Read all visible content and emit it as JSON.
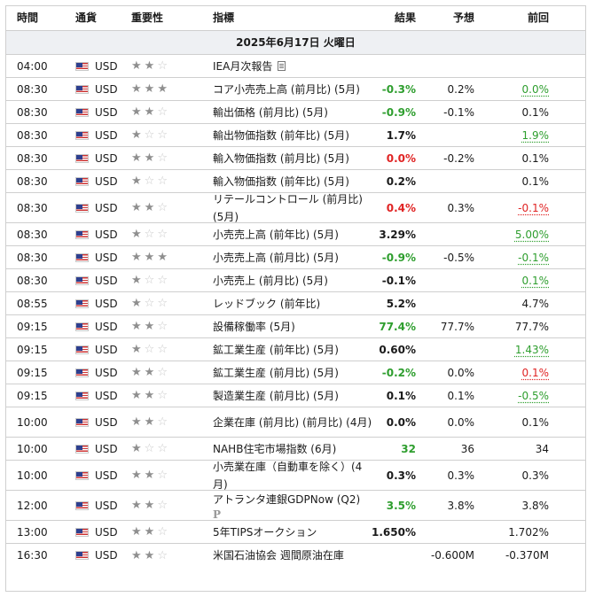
{
  "headers": {
    "time": "時間",
    "currency": "通貨",
    "importance": "重要性",
    "indicator": "指標",
    "result": "結果",
    "forecast": "予想",
    "previous": "前回"
  },
  "date_label": "2025年6月17日 火曜日",
  "rows": [
    {
      "time": "04:00",
      "currency": "USD",
      "stars": 2,
      "indicator": "IEA月次報告",
      "result": "",
      "result_color": "",
      "forecast": "",
      "previous": "",
      "prev_color": "",
      "icon": "document-icon"
    },
    {
      "time": "08:30",
      "currency": "USD",
      "stars": 3,
      "indicator": "コア小売売上高 (前月比) (5月)",
      "result": "-0.3%",
      "result_color": "green",
      "forecast": "0.2%",
      "previous": "0.0%",
      "prev_color": "green"
    },
    {
      "time": "08:30",
      "currency": "USD",
      "stars": 2,
      "indicator": "輸出価格 (前月比) (5月)",
      "result": "-0.9%",
      "result_color": "green",
      "forecast": "-0.1%",
      "previous": "0.1%",
      "prev_color": ""
    },
    {
      "time": "08:30",
      "currency": "USD",
      "stars": 1,
      "indicator": "輸出物価指数 (前年比) (5月)",
      "result": "1.7%",
      "result_color": "",
      "forecast": "",
      "previous": "1.9%",
      "prev_color": "green"
    },
    {
      "time": "08:30",
      "currency": "USD",
      "stars": 2,
      "indicator": "輸入物価指数 (前月比) (5月)",
      "result": "0.0%",
      "result_color": "red",
      "forecast": "-0.2%",
      "previous": "0.1%",
      "prev_color": ""
    },
    {
      "time": "08:30",
      "currency": "USD",
      "stars": 1,
      "indicator": "輸入物価指数 (前年比) (5月)",
      "result": "0.2%",
      "result_color": "",
      "forecast": "",
      "previous": "0.1%",
      "prev_color": ""
    },
    {
      "time": "08:30",
      "currency": "USD",
      "stars": 2,
      "indicator": "リテールコントロール (前月比) (5月)",
      "result": "0.4%",
      "result_color": "red",
      "forecast": "0.3%",
      "previous": "-0.1%",
      "prev_color": "red"
    },
    {
      "time": "08:30",
      "currency": "USD",
      "stars": 1,
      "indicator": "小売売上高 (前年比) (5月)",
      "result": "3.29%",
      "result_color": "",
      "forecast": "",
      "previous": "5.00%",
      "prev_color": "green"
    },
    {
      "time": "08:30",
      "currency": "USD",
      "stars": 3,
      "indicator": "小売売上高 (前月比) (5月)",
      "result": "-0.9%",
      "result_color": "green",
      "forecast": "-0.5%",
      "previous": "-0.1%",
      "prev_color": "green"
    },
    {
      "time": "08:30",
      "currency": "USD",
      "stars": 1,
      "indicator": "小売売上 (前月比) (5月)",
      "result": "-0.1%",
      "result_color": "",
      "forecast": "",
      "previous": "0.1%",
      "prev_color": "green"
    },
    {
      "time": "08:55",
      "currency": "USD",
      "stars": 1,
      "indicator": "レッドブック (前年比)",
      "result": "5.2%",
      "result_color": "",
      "forecast": "",
      "previous": "4.7%",
      "prev_color": ""
    },
    {
      "time": "09:15",
      "currency": "USD",
      "stars": 2,
      "indicator": "設備稼働率 (5月)",
      "result": "77.4%",
      "result_color": "green",
      "forecast": "77.7%",
      "previous": "77.7%",
      "prev_color": ""
    },
    {
      "time": "09:15",
      "currency": "USD",
      "stars": 1,
      "indicator": "鉱工業生産 (前年比) (5月)",
      "result": "0.60%",
      "result_color": "",
      "forecast": "",
      "previous": "1.43%",
      "prev_color": "green"
    },
    {
      "time": "09:15",
      "currency": "USD",
      "stars": 2,
      "indicator": "鉱工業生産 (前月比) (5月)",
      "result": "-0.2%",
      "result_color": "green",
      "forecast": "0.0%",
      "previous": "0.1%",
      "prev_color": "red"
    },
    {
      "time": "09:15",
      "currency": "USD",
      "stars": 2,
      "indicator": "製造業生産 (前月比) (5月)",
      "result": "0.1%",
      "result_color": "",
      "forecast": "0.1%",
      "previous": "-0.5%",
      "prev_color": "green"
    },
    {
      "time": "10:00",
      "currency": "USD",
      "stars": 2,
      "indicator": "企業在庫 (前月比) (前月比) (4月)",
      "result": "0.0%",
      "result_color": "",
      "forecast": "0.0%",
      "previous": "0.1%",
      "prev_color": ""
    },
    {
      "time": "10:00",
      "currency": "USD",
      "stars": 1,
      "indicator": "NAHB住宅市場指数 (6月)",
      "result": "32",
      "result_color": "green",
      "forecast": "36",
      "previous": "34",
      "prev_color": ""
    },
    {
      "time": "10:00",
      "currency": "USD",
      "stars": 2,
      "indicator": "小売業在庫（自動車を除く）(4月)",
      "result": "0.3%",
      "result_color": "",
      "forecast": "0.3%",
      "previous": "0.3%",
      "prev_color": ""
    },
    {
      "time": "12:00",
      "currency": "USD",
      "stars": 2,
      "indicator": "アトランタ連銀GDPNow (Q2)",
      "result": "3.5%",
      "result_color": "green",
      "forecast": "3.8%",
      "previous": "3.8%",
      "prev_color": "",
      "icon": "preliminary-p-icon",
      "icon_text": "P"
    },
    {
      "time": "13:00",
      "currency": "USD",
      "stars": 2,
      "indicator": "5年TIPSオークション",
      "result": "1.650%",
      "result_color": "",
      "forecast": "",
      "previous": "1.702%",
      "prev_color": ""
    },
    {
      "time": "16:30",
      "currency": "USD",
      "stars": 2,
      "indicator": "米国石油協会 週間原油在庫",
      "result": "",
      "result_color": "",
      "forecast": "-0.600M",
      "previous": "-0.370M",
      "prev_color": ""
    }
  ]
}
